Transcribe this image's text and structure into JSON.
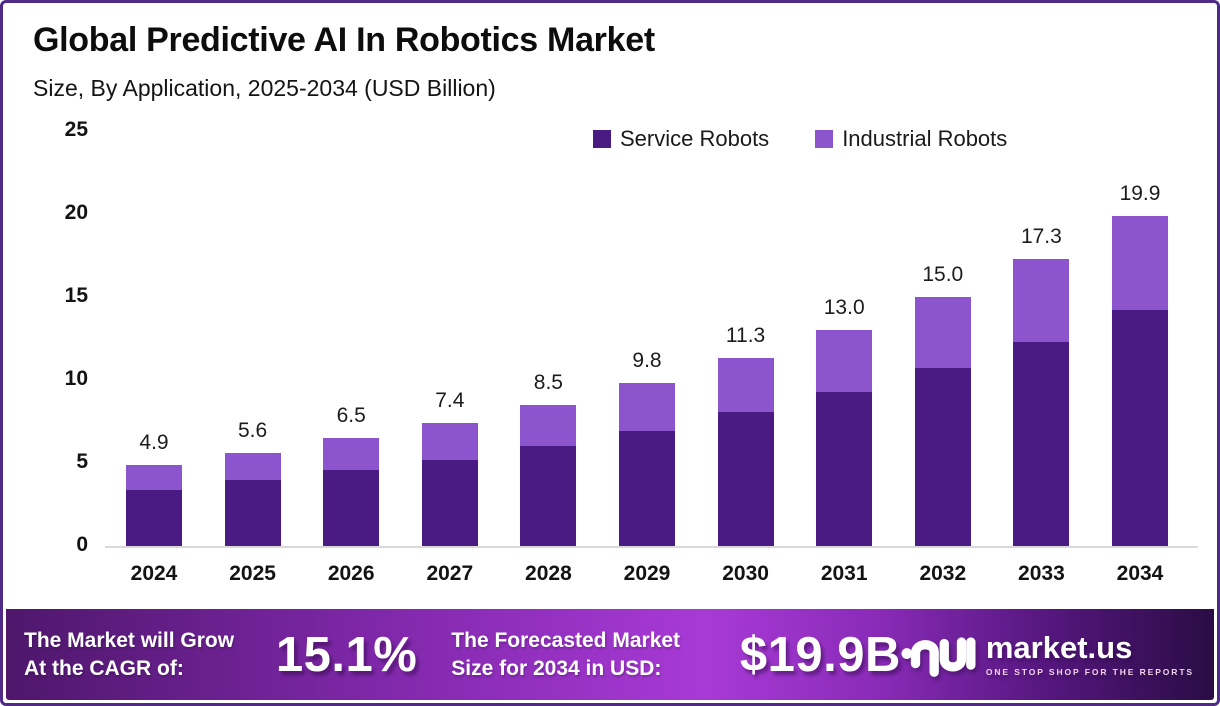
{
  "header": {
    "title": "Global Predictive AI In Robotics Market",
    "subtitle": "Size, By Application, 2025-2034 (USD Billion)"
  },
  "legend": [
    {
      "label": "Service Robots",
      "color": "#4A1B83"
    },
    {
      "label": "Industrial Robots",
      "color": "#8C55CE"
    }
  ],
  "chart_data": {
    "type": "bar",
    "stacked": true,
    "title": "Global Predictive AI In Robotics Market Size, By Application, 2025-2034 (USD Billion)",
    "categories": [
      "2024",
      "2025",
      "2026",
      "2027",
      "2028",
      "2029",
      "2030",
      "2031",
      "2032",
      "2033",
      "2034"
    ],
    "series": [
      {
        "name": "Service Robots",
        "color": "#4A1B83",
        "values": [
          3.4,
          4.0,
          4.6,
          5.2,
          6.0,
          6.9,
          8.1,
          9.3,
          10.7,
          12.3,
          14.2
        ]
      },
      {
        "name": "Industrial Robots",
        "color": "#8C55CE",
        "values": [
          1.5,
          1.6,
          1.9,
          2.2,
          2.5,
          2.9,
          3.2,
          3.7,
          4.3,
          5.0,
          5.7
        ]
      }
    ],
    "totals": [
      4.9,
      5.6,
      6.5,
      7.4,
      8.5,
      9.8,
      11.3,
      13.0,
      15.0,
      17.3,
      19.9
    ],
    "total_labels": [
      "4.9",
      "5.6",
      "6.5",
      "7.4",
      "8.5",
      "9.8",
      "11.3",
      "13.0",
      "15.0",
      "17.3",
      "19.9"
    ],
    "xlabel": "",
    "ylabel": "USD Billion",
    "ylim": [
      0,
      25
    ],
    "yticks": [
      0,
      5,
      10,
      15,
      20,
      25
    ],
    "grid": false,
    "legend_position": "top-right"
  },
  "footer": {
    "cagr_label_line1": "The Market will Grow",
    "cagr_label_line2": "At the CAGR of:",
    "cagr_value": "15.1%",
    "forecast_label_line1": "The Forecasted Market",
    "forecast_label_line2": "Size for 2034 in USD:",
    "forecast_value": "$19.9B",
    "brand": {
      "name": "market.us",
      "tagline": "ONE STOP SHOP FOR THE REPORTS"
    }
  },
  "colors": {
    "service_robots": "#4A1B83",
    "industrial_robots": "#8C55CE",
    "frame_border": "#4F2A87",
    "axis_line": "#d9d9d9",
    "footer_gradient_left": "#4E176B",
    "footer_gradient_mid": "#A83AD6",
    "footer_gradient_right": "#2A0C44"
  }
}
